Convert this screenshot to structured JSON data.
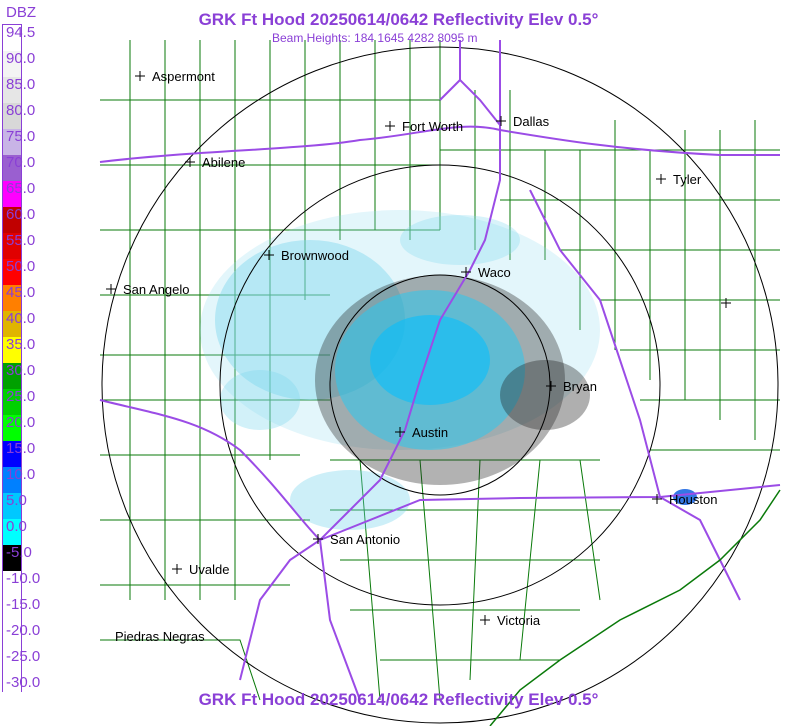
{
  "header": {
    "title": "GRK Ft Hood 20250614/0642 Reflectivity Elev 0.5°",
    "subtitle": "Beam Heights: 184 1645 4282 8095 m",
    "footer_title": "GRK Ft Hood 20250614/0642 Reflectivity Elev 0.5°"
  },
  "legend": {
    "title": "DBZ",
    "labels": [
      "94.5",
      "90.0",
      "85.0",
      "80.0",
      "75.0",
      "70.0",
      "65.0",
      "60.0",
      "55.0",
      "50.0",
      "45.0",
      "40.0",
      "35.0",
      "30.0",
      "25.0",
      "20.0",
      "15.0",
      "10.0",
      "5.0",
      "0.0",
      "-5.0",
      "-10.0",
      "-15.0",
      "-20.0",
      "-25.0",
      "-30.0"
    ],
    "colors": [
      "#ffffff",
      "#f4f4f4",
      "#e6e6e6",
      "#d8d8d8",
      "#c8b4e6",
      "#9a5fd0",
      "#ff00ff",
      "#c00000",
      "#e00000",
      "#ff0000",
      "#ff7f00",
      "#e0b400",
      "#ffff00",
      "#00a000",
      "#00d000",
      "#00ff00",
      "#0000ff",
      "#0080ff",
      "#00c8ff",
      "#00ffff",
      "#000000",
      "#ffffff",
      "#ffffff",
      "#ffffff",
      "#ffffff",
      "#ffffff"
    ]
  },
  "cities": [
    {
      "name": "Aspermont"
    },
    {
      "name": "Fort Worth"
    },
    {
      "name": "Dallas"
    },
    {
      "name": "Abilene"
    },
    {
      "name": "Tyler"
    },
    {
      "name": "Brownwood"
    },
    {
      "name": "Waco"
    },
    {
      "name": "San Angelo"
    },
    {
      "name": "Bryan"
    },
    {
      "name": "Austin"
    },
    {
      "name": "Houston"
    },
    {
      "name": "San Antonio"
    },
    {
      "name": "Uvalde"
    },
    {
      "name": "Victoria"
    },
    {
      "name": "Piedras Negras"
    }
  ],
  "colors": {
    "title": "#8a3fd6",
    "county_lines": "#0a7a0a",
    "highways": "#9b4ce6",
    "range_rings": "#000000"
  }
}
